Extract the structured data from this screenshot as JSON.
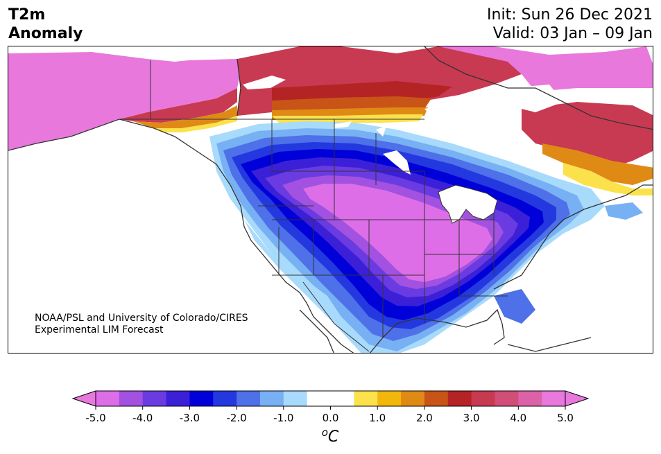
{
  "header": {
    "title_line1": "T2m",
    "title_line2": "Anomaly",
    "init_label": "Init: Sun 26 Dec 2021",
    "valid_label": "Valid: 03 Jan – 09 Jan"
  },
  "credit": {
    "line1": "NOAA/PSL and University of Colorado/CIRES",
    "line2": "Experimental LIM Forecast"
  },
  "colorbar": {
    "ticks": [
      "-5.0",
      "-4.0",
      "-3.0",
      "-2.0",
      "-1.0",
      "0.0",
      "1.0",
      "2.0",
      "3.0",
      "4.0",
      "5.0"
    ],
    "unit_sup": "o",
    "unit_main": "C",
    "colors": [
      "#dd6ee8",
      "#a251e0",
      "#6a3be0",
      "#3c20d8",
      "#0000d8",
      "#2438e0",
      "#4e70e8",
      "#78b0f4",
      "#a8dafc",
      "#ffffff",
      "#ffffff",
      "#fbe24c",
      "#f3b70c",
      "#e08a16",
      "#c85418",
      "#b42424",
      "#c83a52",
      "#d04e78",
      "#dc62a8",
      "#e878dc"
    ],
    "under_color": "#e878dc",
    "over_color": "#e878dc"
  },
  "map": {
    "region": "North America",
    "palette": {
      "pink": "#e878dc",
      "magenta": "#d85fc6",
      "crimson": "#c83a52",
      "red": "#b42424",
      "orange": "#e08a16",
      "yellow": "#fbe24c",
      "lightblue": "#a8dafc",
      "blue": "#4e70e8",
      "darkblue": "#0000d8",
      "indigo": "#3c20d8",
      "purple": "#6a3be0",
      "violet": "#dd6ee8",
      "land_outline": "#333333"
    }
  }
}
